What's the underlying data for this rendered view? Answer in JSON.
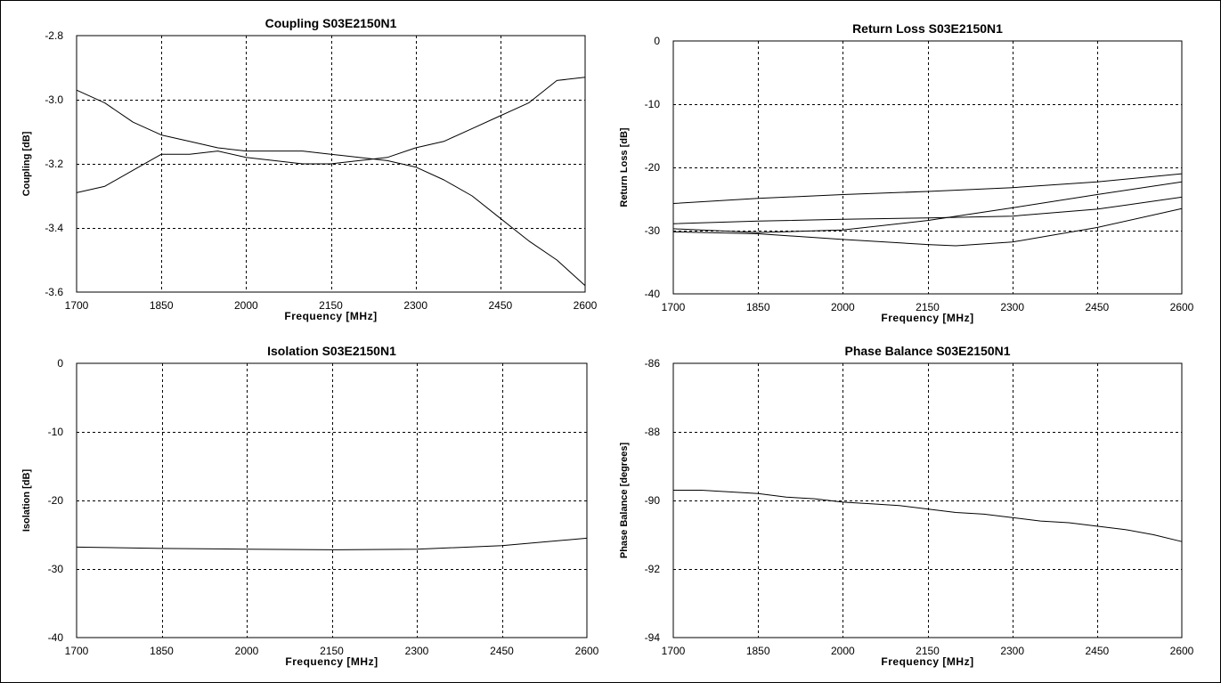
{
  "chart_data": [
    {
      "type": "line",
      "title": "Coupling S03E2150N1",
      "xlabel": "Frequency [MHz]",
      "ylabel": "Coupling [dB]",
      "xlim": [
        1700,
        2600
      ],
      "ylim": [
        -3.6,
        -2.8
      ],
      "xticks": [
        1700,
        1850,
        2000,
        2150,
        2300,
        2450,
        2600
      ],
      "yticks": [
        -2.8,
        -3.0,
        -3.2,
        -3.4,
        -3.6
      ],
      "ytick_labels": [
        "-2.8",
        "-3.0",
        "-3.2",
        "-3.4",
        "-3.6"
      ],
      "grid": true,
      "series": [
        {
          "x": [
            1700,
            1750,
            1800,
            1850,
            1900,
            1950,
            2000,
            2050,
            2100,
            2150,
            2200,
            2250,
            2300,
            2350,
            2400,
            2450,
            2500,
            2550,
            2600
          ],
          "y": [
            -2.97,
            -3.01,
            -3.07,
            -3.11,
            -3.13,
            -3.15,
            -3.16,
            -3.16,
            -3.16,
            -3.17,
            -3.18,
            -3.19,
            -3.21,
            -3.25,
            -3.3,
            -3.37,
            -3.44,
            -3.5,
            -3.58
          ]
        },
        {
          "x": [
            1700,
            1750,
            1800,
            1850,
            1900,
            1950,
            2000,
            2050,
            2100,
            2150,
            2200,
            2250,
            2300,
            2350,
            2400,
            2450,
            2500,
            2550,
            2600
          ],
          "y": [
            -3.29,
            -3.27,
            -3.22,
            -3.17,
            -3.17,
            -3.16,
            -3.18,
            -3.19,
            -3.2,
            -3.2,
            -3.19,
            -3.18,
            -3.15,
            -3.13,
            -3.09,
            -3.05,
            -3.01,
            -2.94,
            -2.93
          ]
        }
      ]
    },
    {
      "type": "line",
      "title": "Return Loss S03E2150N1",
      "xlabel": "Frequency [MHz]",
      "ylabel": "Return Loss [dB]",
      "xlim": [
        1700,
        2600
      ],
      "ylim": [
        -40,
        0
      ],
      "xticks": [
        1700,
        1850,
        2000,
        2150,
        2300,
        2450,
        2600
      ],
      "yticks": [
        0,
        -10,
        -20,
        -30,
        -40
      ],
      "ytick_labels": [
        "0",
        "-10",
        "-20",
        "-30",
        "-40"
      ],
      "grid": true,
      "series": [
        {
          "x": [
            1700,
            1850,
            2000,
            2150,
            2300,
            2450,
            2600
          ],
          "y": [
            -25.7,
            -24.9,
            -24.3,
            -23.8,
            -23.2,
            -22.3,
            -21.0
          ]
        },
        {
          "x": [
            1700,
            1850,
            2000,
            2150,
            2300,
            2450,
            2600
          ],
          "y": [
            -28.9,
            -28.5,
            -28.2,
            -28.0,
            -27.7,
            -26.6,
            -24.7
          ]
        },
        {
          "x": [
            1700,
            1850,
            2000,
            2150,
            2300,
            2450,
            2600
          ],
          "y": [
            -29.7,
            -30.3,
            -29.9,
            -28.4,
            -26.4,
            -24.3,
            -22.3
          ]
        },
        {
          "x": [
            1700,
            1850,
            2000,
            2150,
            2200,
            2300,
            2450,
            2600
          ],
          "y": [
            -30.2,
            -30.5,
            -31.4,
            -32.2,
            -32.4,
            -31.8,
            -29.5,
            -26.5
          ]
        }
      ]
    },
    {
      "type": "line",
      "title": "Isolation S03E2150N1",
      "xlabel": "Frequency [MHz]",
      "ylabel": "Isolation [dB]",
      "xlim": [
        1700,
        2600
      ],
      "ylim": [
        -40,
        0
      ],
      "xticks": [
        1700,
        1850,
        2000,
        2150,
        2300,
        2450,
        2600
      ],
      "yticks": [
        0,
        -10,
        -20,
        -30,
        -40
      ],
      "ytick_labels": [
        "0",
        "-10",
        "-20",
        "-30",
        "-40"
      ],
      "grid": true,
      "series": [
        {
          "x": [
            1700,
            1850,
            2000,
            2150,
            2300,
            2450,
            2600
          ],
          "y": [
            -26.8,
            -27.0,
            -27.1,
            -27.2,
            -27.1,
            -26.6,
            -25.5
          ]
        }
      ]
    },
    {
      "type": "line",
      "title": "Phase Balance S03E2150N1",
      "xlabel": "Frequency [MHz]",
      "ylabel": "Phase Balance [degrees]",
      "xlim": [
        1700,
        2600
      ],
      "ylim": [
        -94,
        -86
      ],
      "xticks": [
        1700,
        1850,
        2000,
        2150,
        2300,
        2450,
        2600
      ],
      "yticks": [
        -86,
        -88,
        -90,
        -92,
        -94
      ],
      "ytick_labels": [
        "-86",
        "-88",
        "-90",
        "-92",
        "-94"
      ],
      "grid": true,
      "series": [
        {
          "x": [
            1700,
            1750,
            1800,
            1850,
            1900,
            1950,
            2000,
            2050,
            2100,
            2150,
            2200,
            2250,
            2300,
            2350,
            2400,
            2450,
            2500,
            2550,
            2600
          ],
          "y": [
            -89.7,
            -89.7,
            -89.75,
            -89.8,
            -89.9,
            -89.95,
            -90.05,
            -90.1,
            -90.15,
            -90.25,
            -90.35,
            -90.4,
            -90.5,
            -90.6,
            -90.65,
            -90.75,
            -90.85,
            -91.0,
            -91.2
          ]
        }
      ]
    }
  ]
}
